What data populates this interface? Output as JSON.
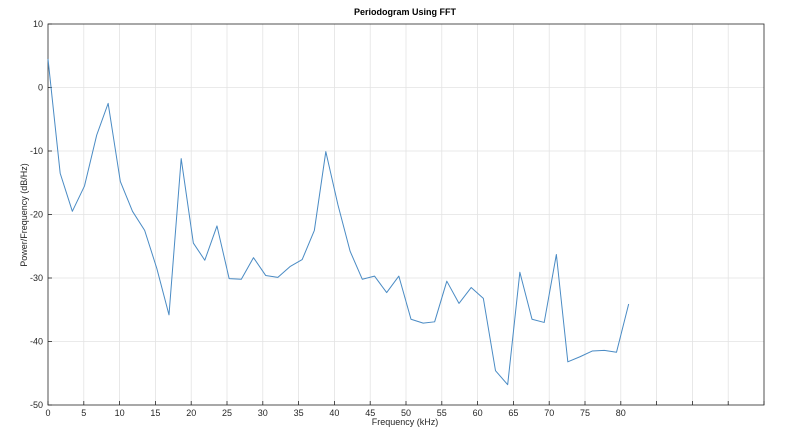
{
  "chart_data": {
    "type": "line",
    "title": "Periodogram Using FFT",
    "xlabel": "Frequency (kHz)",
    "ylabel": "Power/Frequency (dB/Hz)",
    "xlim": [
      0,
      100
    ],
    "ylim": [
      -50,
      10
    ],
    "xticks": [
      0,
      5,
      10,
      15,
      20,
      25,
      30,
      35,
      40,
      45,
      50,
      55,
      60,
      65,
      70,
      75,
      80
    ],
    "yticks": [
      10,
      0,
      -10,
      -20,
      -30,
      -40,
      -50
    ],
    "grid": true,
    "series": [
      {
        "color": "#4a8bc4",
        "x": [
          0,
          1.7,
          3.4,
          5.1,
          6.8,
          8.4,
          10.1,
          11.8,
          13.5,
          15.2,
          16.9,
          18.6,
          20.3,
          21.9,
          23.6,
          25.3,
          27.0,
          28.7,
          30.4,
          32.1,
          33.8,
          35.5,
          37.2,
          38.8,
          40.5,
          42.2,
          43.9,
          45.6,
          47.3,
          49.0,
          50.7,
          52.4,
          54.0,
          55.7,
          57.4,
          59.1,
          60.8,
          62.5,
          64.2,
          65.9,
          67.6,
          69.3,
          71.0,
          72.6,
          74.3,
          76.0,
          77.7,
          79.4,
          81.1
        ],
        "y": [
          4.5,
          -13.5,
          -19.5,
          -15.5,
          -7.5,
          -2.5,
          -14.8,
          -19.5,
          -22.5,
          -28.5,
          -35.8,
          -11.2,
          -24.5,
          -27.2,
          -21.8,
          -30.1,
          -30.2,
          -26.8,
          -29.6,
          -29.9,
          -28.2,
          -27.1,
          -22.5,
          -10.1,
          -18.5,
          -25.8,
          -30.2,
          -29.7,
          -32.3,
          -29.7,
          -36.5,
          -37.1,
          -36.9,
          -30.5,
          -34.0,
          -31.5,
          -33.2,
          -44.6,
          -46.8,
          -29.1,
          -36.5,
          -37.0,
          -26.3,
          -43.2,
          -42.4,
          -41.5,
          -41.4,
          -41.7,
          -34.1
        ]
      }
    ]
  }
}
